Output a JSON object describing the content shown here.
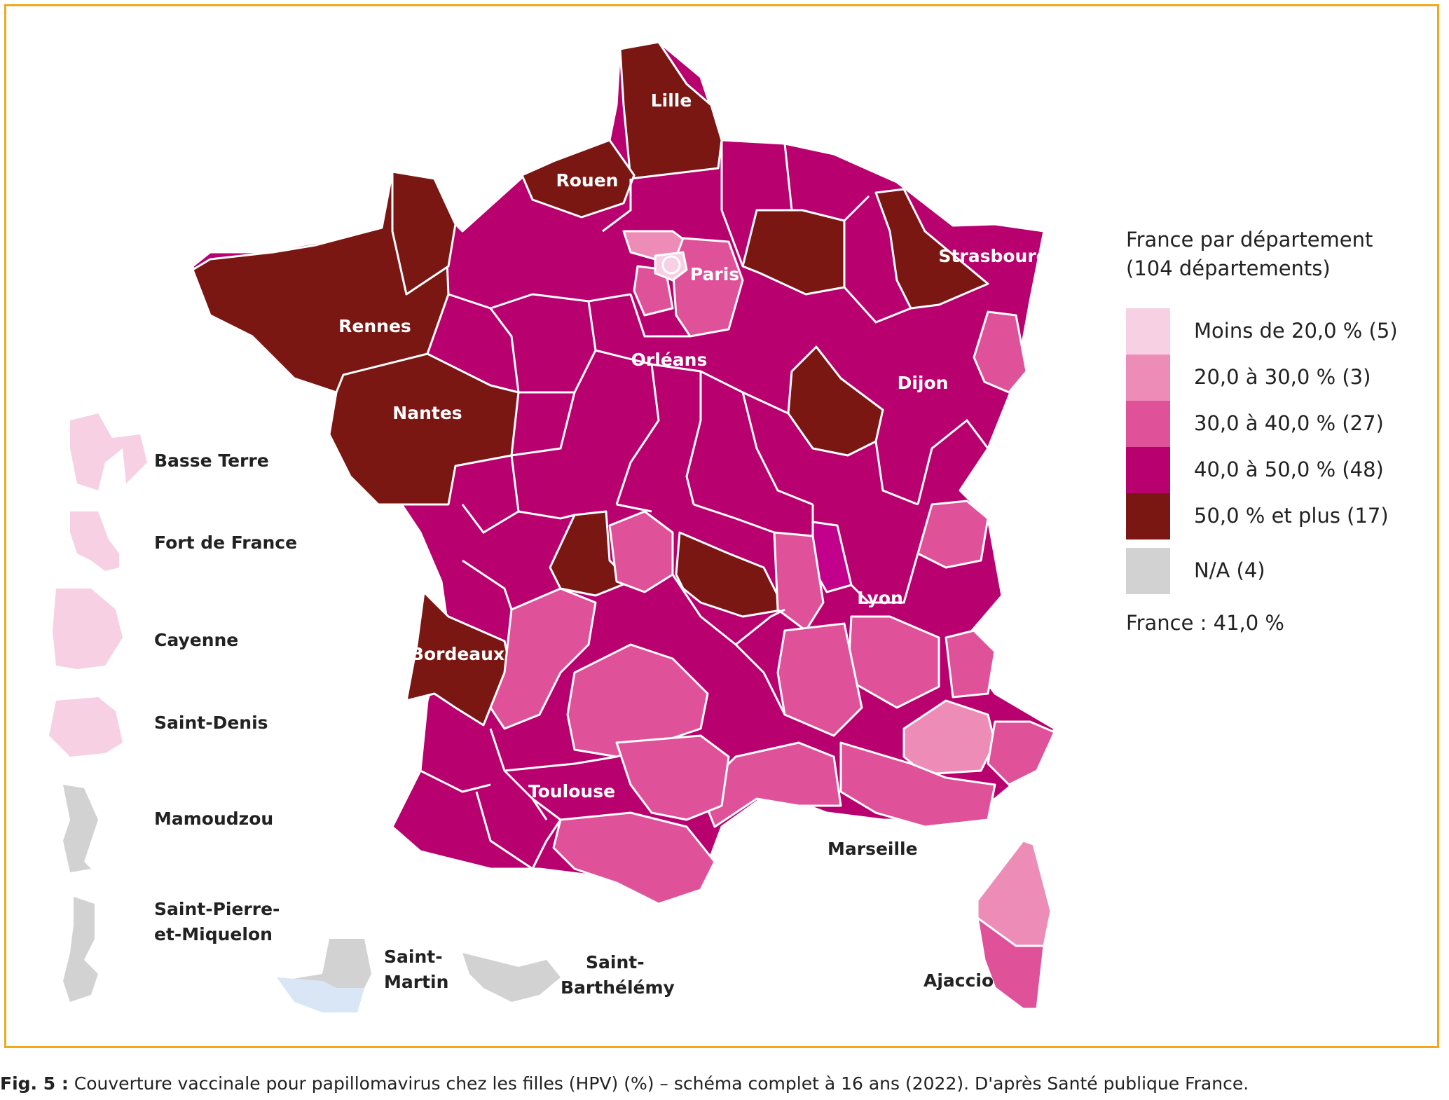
{
  "colors": {
    "frame": "#f2a81d",
    "lt20": "#f7d0e3",
    "c20_30": "#ee8cb8",
    "c30_40": "#df529a",
    "c40_50": "#b8006e",
    "c50plus": "#7a1712",
    "na": "#d2d2d2",
    "saint_martin_blue": "#d9e6f5"
  },
  "legend": {
    "title_line1": "France par département",
    "title_line2": "(104 départements)",
    "items": [
      {
        "label": "Moins de 20,0 % (5)",
        "color": "#f7d0e3"
      },
      {
        "label": "20,0 à 30,0 % (3)",
        "color": "#ee8cb8"
      },
      {
        "label": "30,0 à 40,0 % (27)",
        "color": "#df529a"
      },
      {
        "label": "40,0 à 50,0 % (48)",
        "color": "#b8006e"
      },
      {
        "label": "50,0 % et plus (17)",
        "color": "#7a1712"
      },
      {
        "label": "N/A (4)",
        "color": "#d2d2d2"
      }
    ],
    "france_total": "France : 41,0 %"
  },
  "cities": {
    "lille": "Lille",
    "rouen": "Rouen",
    "paris": "Paris",
    "strasbourg": "Strasbourg",
    "rennes": "Rennes",
    "orleans": "Orléans",
    "dijon": "Dijon",
    "nantes": "Nantes",
    "lyon": "Lyon",
    "bordeaux": "Bordeaux",
    "toulouse": "Toulouse",
    "marseille": "Marseille",
    "ajaccio": "Ajaccio"
  },
  "overseas": {
    "basse_terre": "Basse Terre",
    "fort_de_france": "Fort de France",
    "cayenne": "Cayenne",
    "saint_denis": "Saint-Denis",
    "mamoudzou": "Mamoudzou",
    "spm_line1": "Saint-Pierre-",
    "spm_line2": "et-Miquelon",
    "saint_martin_line1": "Saint-",
    "saint_martin_line2": "Martin",
    "saint_barth_line1": "Saint-",
    "saint_barth_line2": "Barthélémy"
  },
  "caption": {
    "prefix": "Fig. 5 :",
    "text": " Couverture vaccinale pour papillomavirus chez les filles (HPV) (%) – schéma complet à 16 ans (2022). D'après Santé publique France."
  }
}
